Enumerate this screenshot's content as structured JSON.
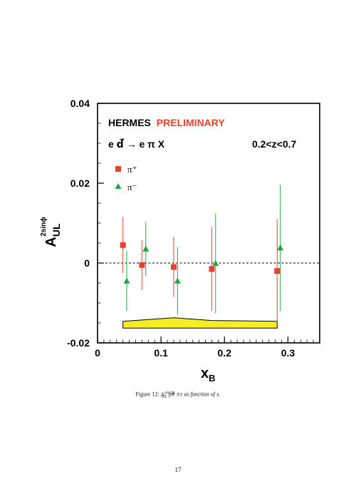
{
  "page_number": "17",
  "caption": {
    "prefix": "Figure 12:",
    "quantity": "A",
    "quantity_sup": "sin 2ϕ",
    "quantity_sub": "UL",
    "rest": "for π± as function of x."
  },
  "chart_data": {
    "type": "scatter",
    "title": "HERMES",
    "title_highlight": "PRELIMINARY",
    "title_highlight_color": "#e8402a",
    "reaction": "e d⃗ → e π X",
    "kinematic_cut": "0.2<z<0.7",
    "ylabel_main": "A",
    "ylabel_sup": "2sinϕ",
    "ylabel_sub": "UL",
    "xlabel_main": "x",
    "xlabel_sub": "B",
    "xlim": [
      0,
      0.35
    ],
    "ylim": [
      -0.02,
      0.04
    ],
    "xticks": [
      0,
      0.1,
      0.2,
      0.3
    ],
    "xtick_labels": [
      "0",
      "0.1",
      "0.2",
      "0.3"
    ],
    "yticks": [
      -0.02,
      0,
      0.02,
      0.04
    ],
    "ytick_labels": [
      "-0.02",
      "0",
      "0.02",
      "0.04"
    ],
    "zero_line": true,
    "grid": false,
    "legend_placement": "top-left",
    "series": [
      {
        "name": "π⁺",
        "marker": "square",
        "color": "#e8402a",
        "x": [
          0.04,
          0.07,
          0.12,
          0.18,
          0.283
        ],
        "y": [
          0.0045,
          -0.0005,
          -0.001,
          -0.0015,
          -0.002
        ],
        "err": [
          0.007,
          0.0062,
          0.0075,
          0.0105,
          0.013
        ]
      },
      {
        "name": "π⁻",
        "marker": "triangle",
        "color": "#22a64a",
        "x": [
          0.046,
          0.076,
          0.126,
          0.186,
          0.288
        ],
        "y": [
          -0.0045,
          0.0035,
          -0.0045,
          -0.0001,
          0.0038
        ],
        "err": [
          0.0075,
          0.0068,
          0.0085,
          0.0125,
          0.0158
        ]
      }
    ],
    "systematic_band": {
      "color": "#f5ee22",
      "x": [
        0.04,
        0.12,
        0.18,
        0.283
      ],
      "lower": [
        -0.0163,
        -0.0163,
        -0.0163,
        -0.0163
      ],
      "upper": [
        -0.0146,
        -0.0137,
        -0.0144,
        -0.0146
      ]
    }
  }
}
